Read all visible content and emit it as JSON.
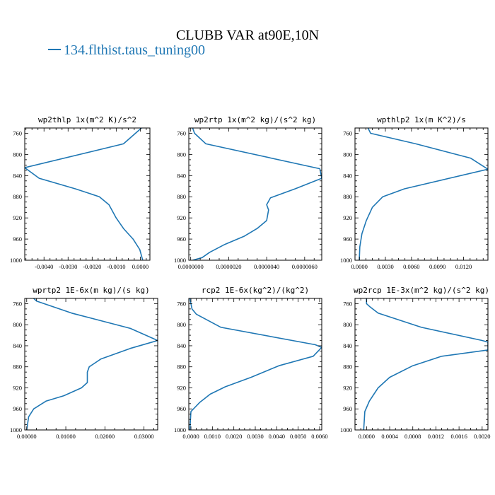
{
  "figure": {
    "title": "CLUBB VAR at90E,10N",
    "legend_label": "134.flthist.taus_tuning00",
    "line_color": "#1f77b4"
  },
  "chart_data": [
    {
      "type": "line",
      "title": "wp2thlp  1x(m^2 K)/s^2",
      "xlim": [
        -0.0048,
        0.0004
      ],
      "ylim": [
        1000,
        750
      ],
      "xticks": [
        -0.004,
        -0.003,
        -0.002,
        -0.001,
        0.0
      ],
      "xtick_labels": [
        "-0.0040",
        "-0.0030",
        "-0.0020",
        "-0.0010",
        "0.0000"
      ],
      "yticks": [
        760,
        800,
        840,
        880,
        920,
        960,
        1000
      ],
      "series": [
        {
          "values": [
            {
              "x": 5e-05,
              "y": 750
            },
            {
              "x": -0.0007,
              "y": 780
            },
            {
              "x": -0.0048,
              "y": 825
            },
            {
              "x": -0.0042,
              "y": 845
            },
            {
              "x": -0.0027,
              "y": 865
            },
            {
              "x": -0.0017,
              "y": 880
            },
            {
              "x": -0.0013,
              "y": 895
            },
            {
              "x": -0.001,
              "y": 920
            },
            {
              "x": -0.0007,
              "y": 940
            },
            {
              "x": -0.0003,
              "y": 960
            },
            {
              "x": -2e-05,
              "y": 980
            },
            {
              "x": 0.0001,
              "y": 1000
            }
          ]
        }
      ]
    },
    {
      "type": "line",
      "title": "wp2rtp  1x(m^2 kg)/(s^2 kg)",
      "xlim": [
        -1e-07,
        6.9e-06
      ],
      "ylim": [
        1000,
        750
      ],
      "xticks": [
        0.0,
        2e-06,
        4e-06,
        6e-06
      ],
      "xtick_labels": [
        "0.0000000",
        "0.0000020",
        "0.0000040",
        "0.0000060"
      ],
      "yticks": [
        760,
        800,
        840,
        880,
        920,
        960,
        1000
      ],
      "series": [
        {
          "values": [
            {
              "x": 1e-07,
              "y": 750
            },
            {
              "x": 2e-07,
              "y": 760
            },
            {
              "x": 8e-07,
              "y": 780
            },
            {
              "x": 6.8e-06,
              "y": 827
            },
            {
              "x": 6.9e-06,
              "y": 845
            },
            {
              "x": 5.5e-06,
              "y": 865
            },
            {
              "x": 4.2e-06,
              "y": 882
            },
            {
              "x": 4e-06,
              "y": 895
            },
            {
              "x": 4.1e-06,
              "y": 905
            },
            {
              "x": 4e-06,
              "y": 925
            },
            {
              "x": 3.5e-06,
              "y": 940
            },
            {
              "x": 2.8e-06,
              "y": 955
            },
            {
              "x": 1.8e-06,
              "y": 970
            },
            {
              "x": 1e-06,
              "y": 985
            },
            {
              "x": 6e-07,
              "y": 995
            },
            {
              "x": 1e-07,
              "y": 1000
            }
          ]
        }
      ]
    },
    {
      "type": "line",
      "title": "wpthlp2  1x(m K^2)/s",
      "xlim": [
        -0.0005,
        0.0148
      ],
      "ylim": [
        1000,
        750
      ],
      "xticks": [
        0.0,
        0.003,
        0.006,
        0.009,
        0.012
      ],
      "xtick_labels": [
        "0.0000",
        "0.0030",
        "0.0060",
        "0.0090",
        "0.0120"
      ],
      "yticks": [
        760,
        800,
        840,
        880,
        920,
        960,
        1000
      ],
      "series": [
        {
          "values": [
            {
              "x": 0.001,
              "y": 750
            },
            {
              "x": 0.0013,
              "y": 760
            },
            {
              "x": 0.0065,
              "y": 780
            },
            {
              "x": 0.0128,
              "y": 807
            },
            {
              "x": 0.0148,
              "y": 828
            },
            {
              "x": 0.0052,
              "y": 865
            },
            {
              "x": 0.0027,
              "y": 880
            },
            {
              "x": 0.0015,
              "y": 900
            },
            {
              "x": 0.0008,
              "y": 925
            },
            {
              "x": 0.0003,
              "y": 950
            },
            {
              "x": 5e-05,
              "y": 975
            },
            {
              "x": 0.0,
              "y": 1000
            }
          ]
        }
      ]
    },
    {
      "type": "line",
      "title": "wprtp2  1E-6x(m kg)/(s kg)",
      "xlim": [
        -0.0005,
        0.0335
      ],
      "ylim": [
        1000,
        750
      ],
      "xticks": [
        0.0,
        0.01,
        0.02,
        0.03
      ],
      "xtick_labels": [
        "0.00000",
        "0.01000",
        "0.02000",
        "0.03000"
      ],
      "yticks": [
        760,
        800,
        840,
        880,
        920,
        960,
        1000
      ],
      "series": [
        {
          "values": [
            {
              "x": 0.0018,
              "y": 750
            },
            {
              "x": 0.0025,
              "y": 755
            },
            {
              "x": 0.0115,
              "y": 778
            },
            {
              "x": 0.0265,
              "y": 807
            },
            {
              "x": 0.0335,
              "y": 830
            },
            {
              "x": 0.0265,
              "y": 845
            },
            {
              "x": 0.019,
              "y": 865
            },
            {
              "x": 0.016,
              "y": 880
            },
            {
              "x": 0.0155,
              "y": 890
            },
            {
              "x": 0.0155,
              "y": 910
            },
            {
              "x": 0.014,
              "y": 920
            },
            {
              "x": 0.0095,
              "y": 935
            },
            {
              "x": 0.005,
              "y": 945
            },
            {
              "x": 0.0018,
              "y": 960
            },
            {
              "x": 0.0005,
              "y": 975
            },
            {
              "x": 0.0,
              "y": 1000
            }
          ]
        }
      ]
    },
    {
      "type": "line",
      "title": "rcp2  1E-6x(kg^2)/(kg^2)",
      "xlim": [
        -0.0001,
        0.0061
      ],
      "ylim": [
        1000,
        750
      ],
      "xticks": [
        0.0,
        0.001,
        0.002,
        0.003,
        0.004,
        0.005,
        0.006
      ],
      "xtick_labels": [
        "0.0000",
        "0.0010",
        "0.0020",
        "0.0030",
        "0.0040",
        "0.0050",
        "0.0060"
      ],
      "yticks": [
        760,
        800,
        840,
        880,
        920,
        960,
        1000
      ],
      "series": [
        {
          "values": [
            {
              "x": -5e-05,
              "y": 750
            },
            {
              "x": 5e-05,
              "y": 770
            },
            {
              "x": 0.00025,
              "y": 780
            },
            {
              "x": 0.0014,
              "y": 805
            },
            {
              "x": 0.0058,
              "y": 838
            },
            {
              "x": 0.0061,
              "y": 843
            },
            {
              "x": 0.0057,
              "y": 860
            },
            {
              "x": 0.0041,
              "y": 878
            },
            {
              "x": 0.0028,
              "y": 900
            },
            {
              "x": 0.0016,
              "y": 918
            },
            {
              "x": 0.0009,
              "y": 932
            },
            {
              "x": 0.0004,
              "y": 948
            },
            {
              "x": 0.0,
              "y": 965
            },
            {
              "x": -5e-05,
              "y": 1000
            }
          ]
        }
      ]
    },
    {
      "type": "line",
      "title": "wp2rcp  1E-3x(m^2 kg)/(s^2 kg)",
      "xlim": [
        -0.0002,
        0.0021
      ],
      "ylim": [
        1000,
        750
      ],
      "xticks": [
        0.0,
        0.0004,
        0.0008,
        0.0012,
        0.0016,
        0.002
      ],
      "xtick_labels": [
        "0.0000",
        "0.0004",
        "0.0008",
        "0.0012",
        "0.0016",
        "0.0020"
      ],
      "yticks": [
        760,
        800,
        840,
        880,
        920,
        960,
        1000
      ],
      "series": [
        {
          "values": [
            {
              "x": 0.0,
              "y": 750
            },
            {
              "x": 0.0,
              "y": 760
            },
            {
              "x": 5e-05,
              "y": 765
            },
            {
              "x": 0.0002,
              "y": 778
            },
            {
              "x": 0.00095,
              "y": 805
            },
            {
              "x": 0.002,
              "y": 830
            },
            {
              "x": 0.0021,
              "y": 833
            },
            {
              "x": 0.0021,
              "y": 848
            },
            {
              "x": 0.0013,
              "y": 860
            },
            {
              "x": 0.0008,
              "y": 878
            },
            {
              "x": 0.0004,
              "y": 900
            },
            {
              "x": 0.0002,
              "y": 920
            },
            {
              "x": 5e-05,
              "y": 945
            },
            {
              "x": -3e-05,
              "y": 965
            },
            {
              "x": -5e-05,
              "y": 1000
            }
          ]
        }
      ]
    }
  ]
}
